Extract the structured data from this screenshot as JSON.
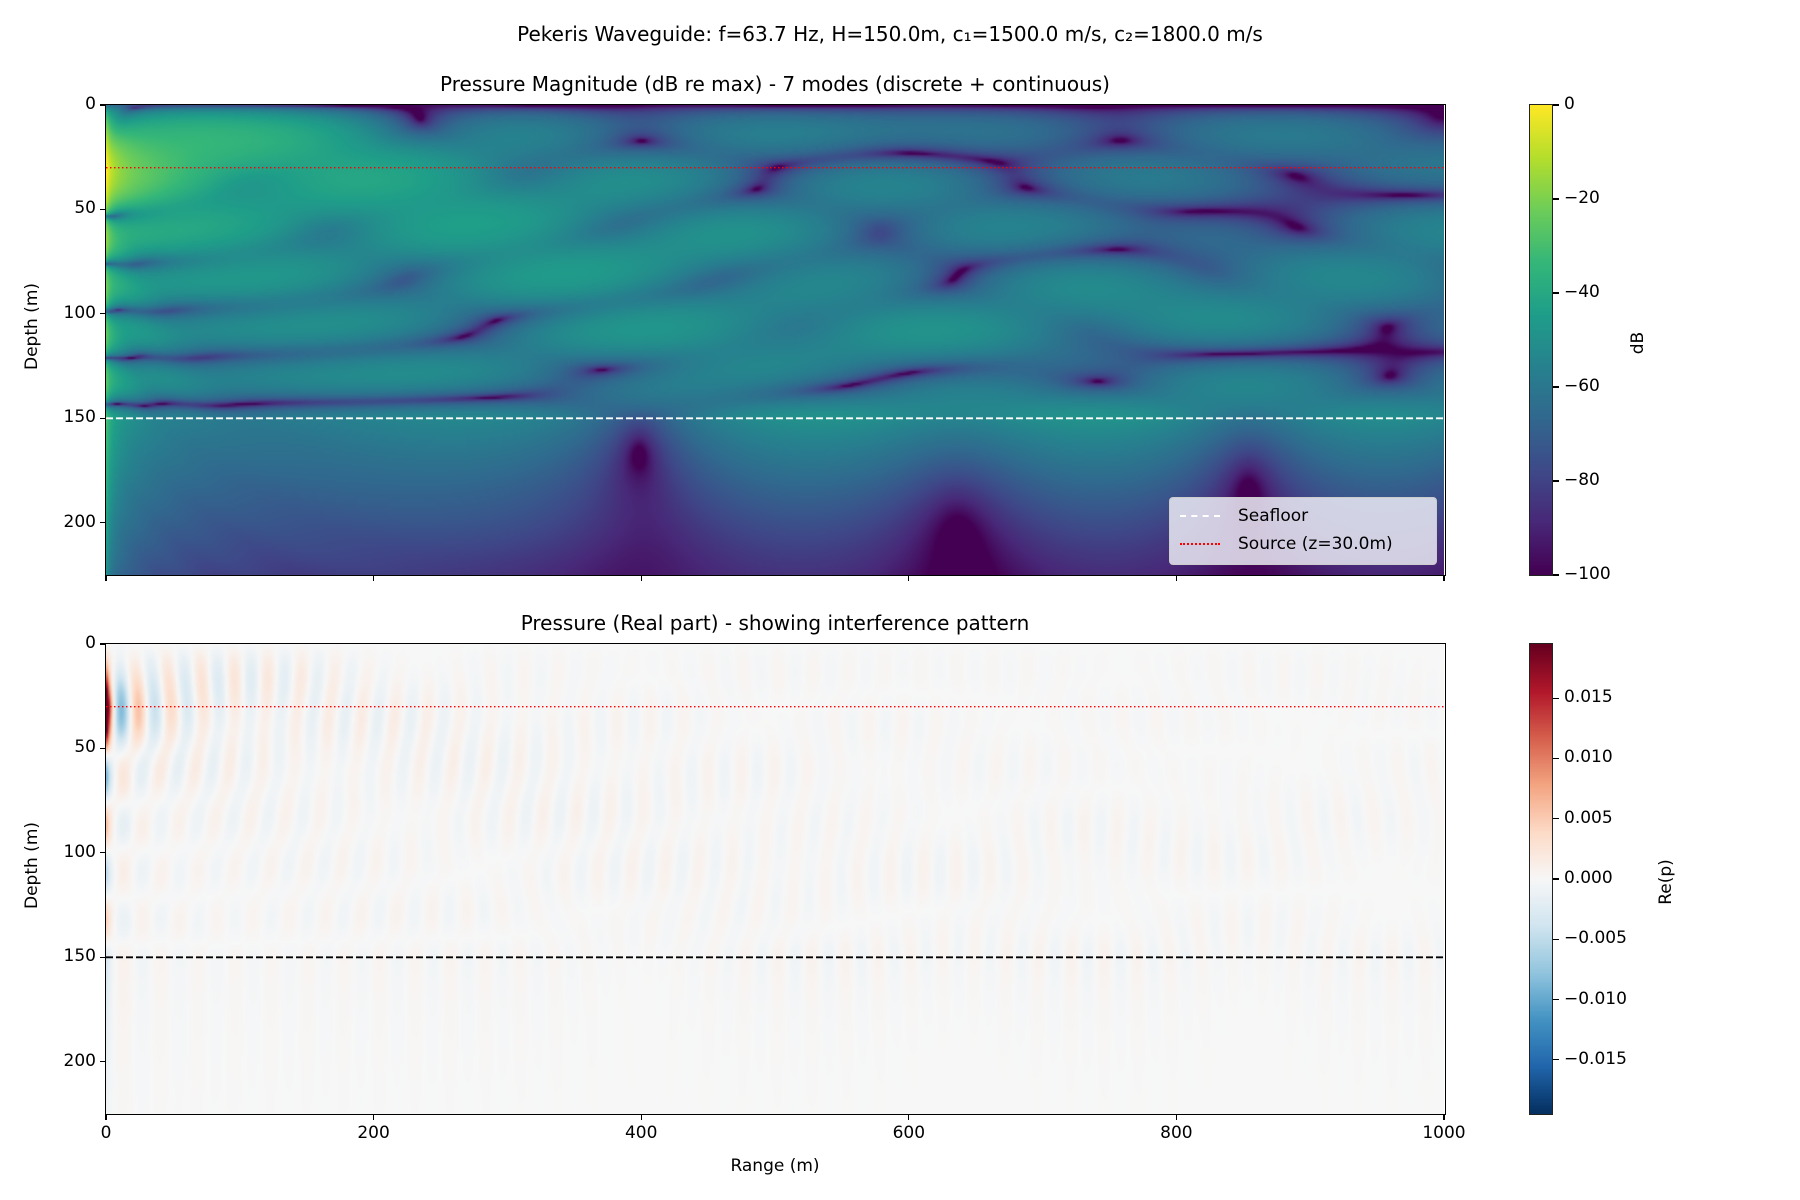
{
  "suptitle": "Pekeris Waveguide: f=63.7 Hz, H=150.0m, c₁=1500.0 m/s, c₂=1800.0 m/s",
  "chart_data": [
    {
      "type": "heatmap",
      "title": "Pressure Magnitude (dB re max) - 7 modes (discrete + continuous)",
      "xlabel": "",
      "ylabel": "Depth (m)",
      "xlim": [
        0,
        1000
      ],
      "ylim": [
        225,
        0
      ],
      "y_inverted": true,
      "xticks": [
        "0",
        "200",
        "400",
        "600",
        "800",
        "1000"
      ],
      "yticks": [
        "0",
        "50",
        "100",
        "150",
        "200"
      ],
      "colormap": "viridis",
      "colorbar": {
        "label": "dB",
        "range": [
          -100,
          0
        ],
        "ticks": [
          "0",
          "−20",
          "−40",
          "−60",
          "−80",
          "−100"
        ]
      },
      "params": {
        "frequency_hz": 63.7,
        "water_depth_m": 150.0,
        "c1": 1500.0,
        "c2": 1800.0,
        "source_depth_m": 30.0,
        "modes": 7
      },
      "lines": [
        {
          "name": "Seafloor",
          "depth": 150,
          "style": "dashed",
          "color": "#ffffff"
        },
        {
          "name": "Source (z=30.0m)",
          "depth": 30,
          "style": "dotted",
          "color": "#ff0000"
        }
      ],
      "legend": {
        "position": "lower-right",
        "entries": [
          "Seafloor",
          "Source (z=30.0m)"
        ]
      }
    },
    {
      "type": "heatmap",
      "title": "Pressure (Real part) - showing interference pattern",
      "xlabel": "Range (m)",
      "ylabel": "Depth (m)",
      "xlim": [
        0,
        1000
      ],
      "ylim": [
        225,
        0
      ],
      "y_inverted": true,
      "xticks": [
        "0",
        "200",
        "400",
        "600",
        "800",
        "1000"
      ],
      "yticks": [
        "0",
        "50",
        "100",
        "150",
        "200"
      ],
      "colormap": "RdBu_r",
      "colorbar": {
        "label": "Re(p)",
        "range": [
          -0.0195,
          0.0195
        ],
        "ticks": [
          "0.015",
          "0.010",
          "0.005",
          "0.000",
          "−0.005",
          "−0.010",
          "−0.015"
        ]
      },
      "lines": [
        {
          "name": "Seafloor",
          "depth": 150,
          "style": "dashed",
          "color": "#000000"
        },
        {
          "name": "Source",
          "depth": 30,
          "style": "dotted",
          "color": "#ff0000"
        }
      ]
    }
  ]
}
